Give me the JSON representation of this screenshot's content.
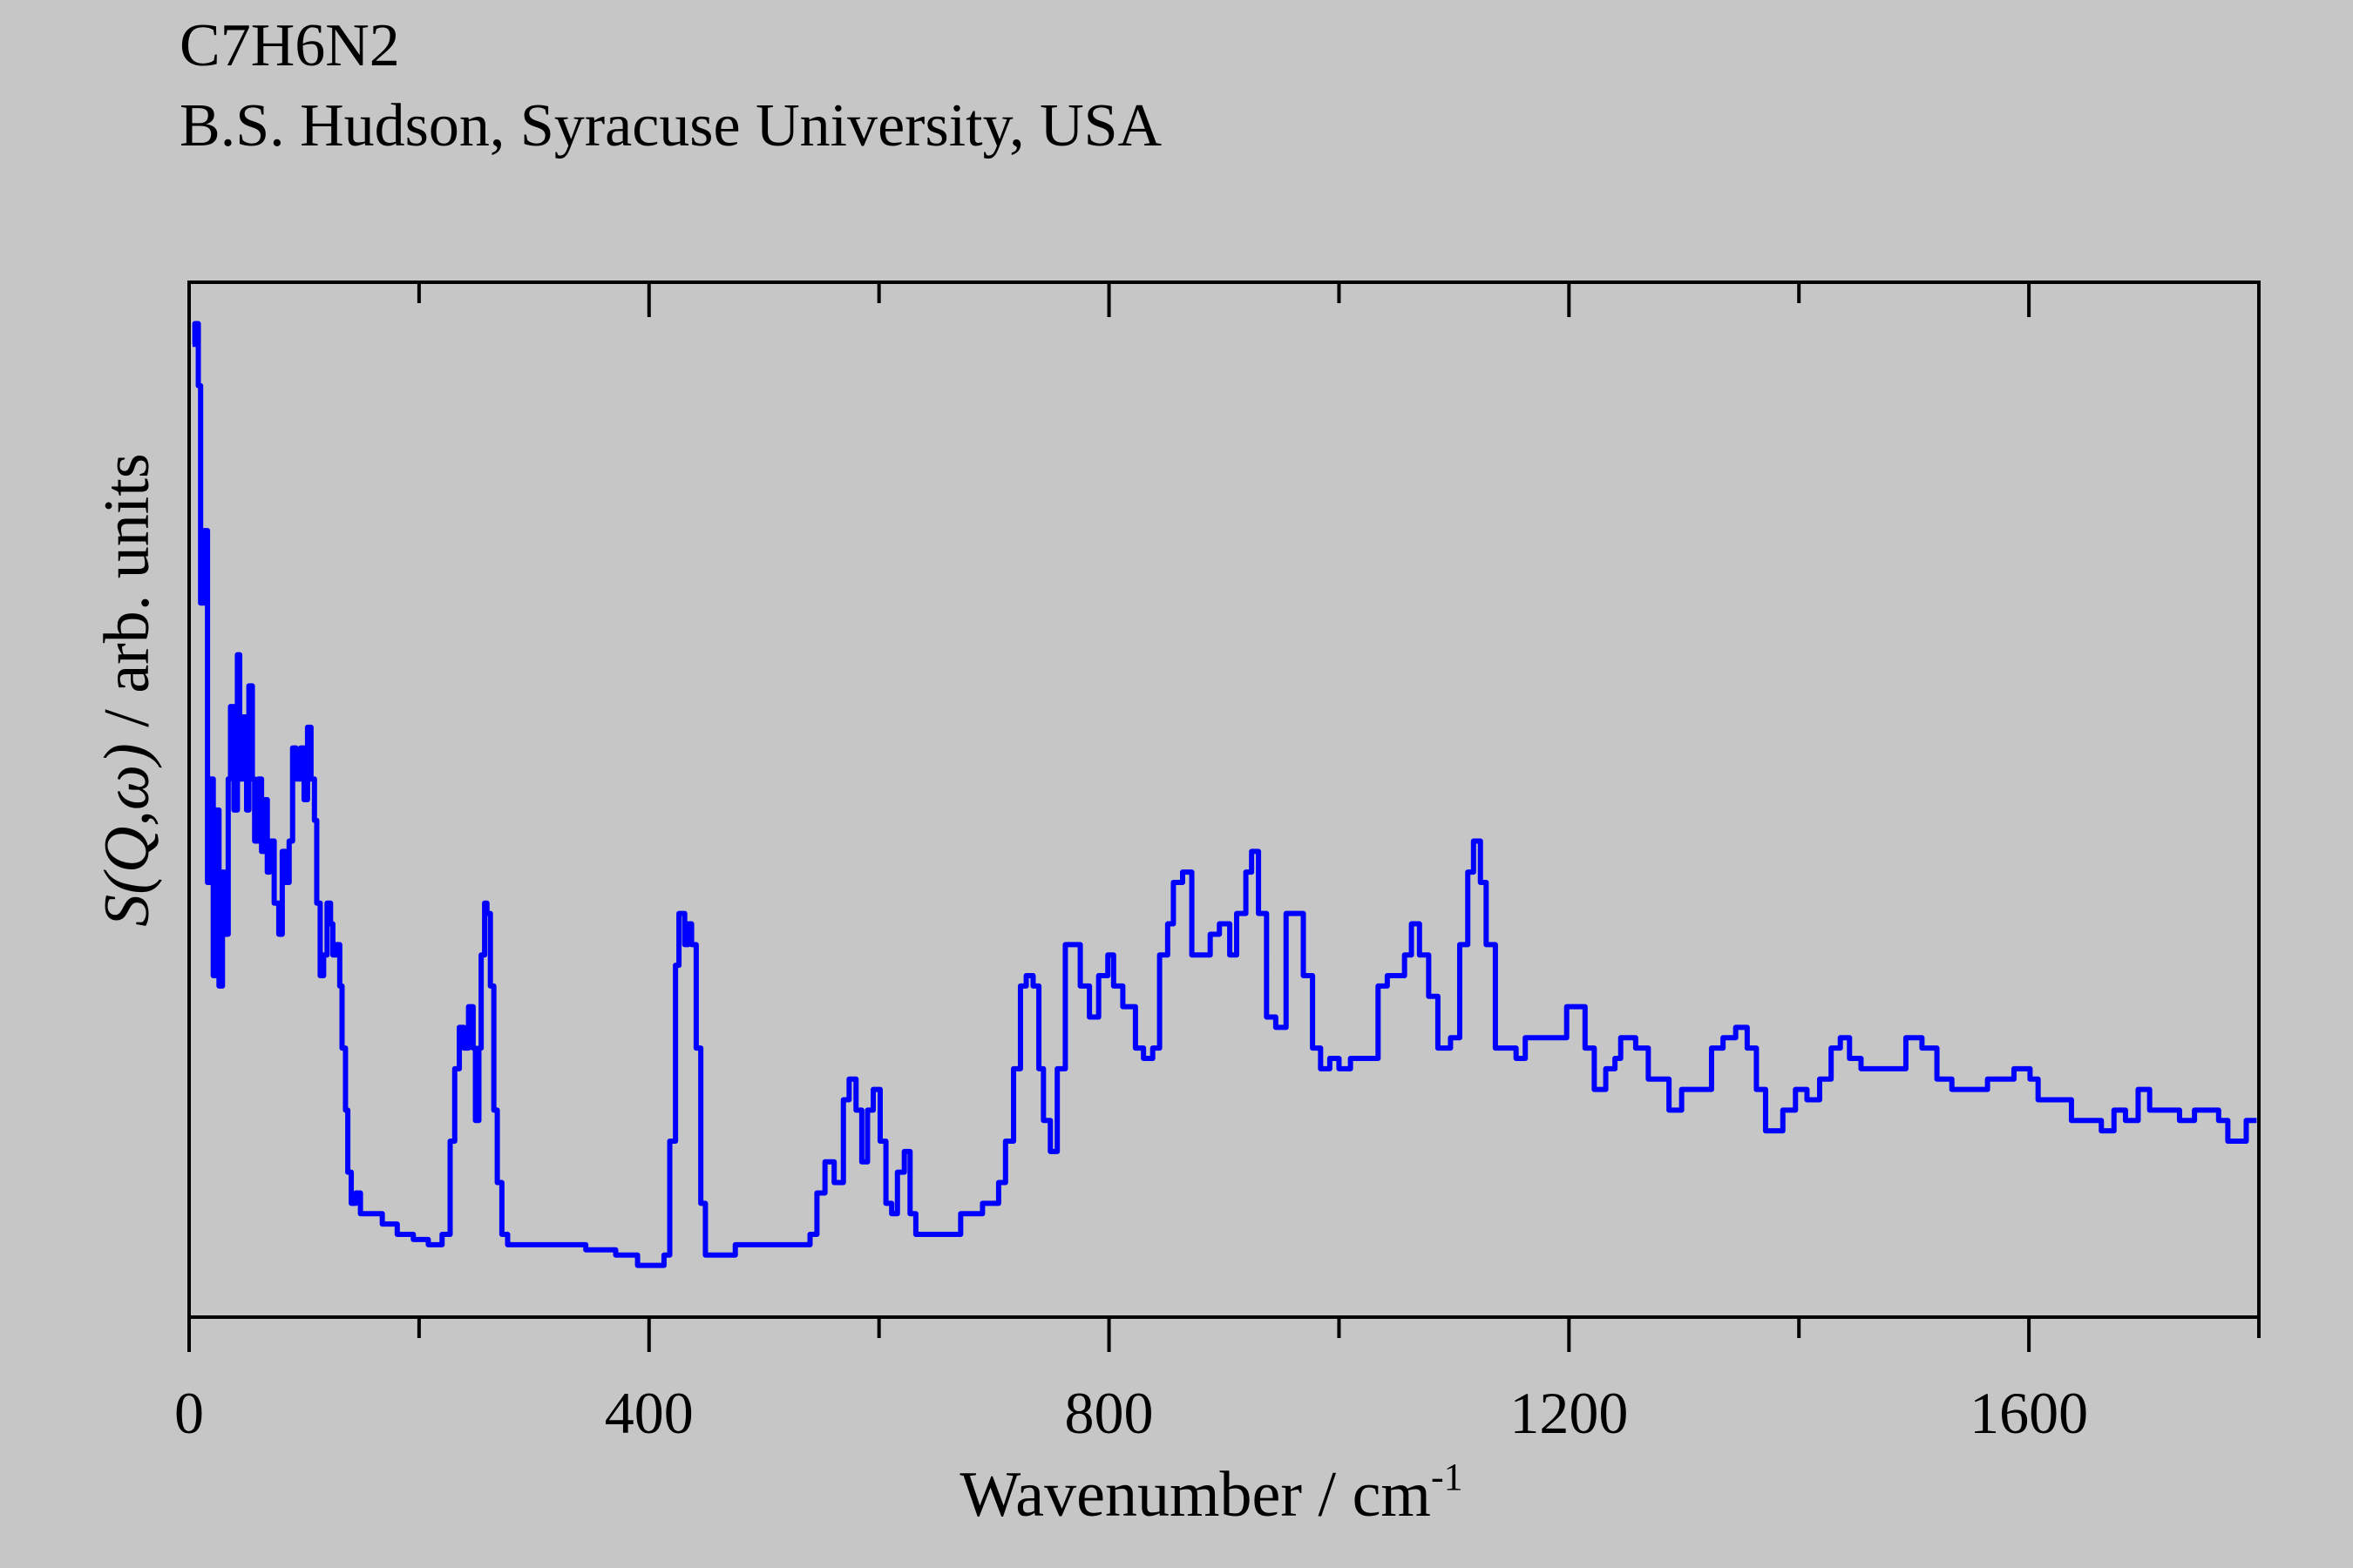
{
  "header": {
    "title": "C7H6N2",
    "subtitle": "B.S. Hudson, Syracuse University, USA"
  },
  "colors": {
    "background": "#c6c6c6",
    "series": "#0000ff",
    "axis": "#000000"
  },
  "chart_data": {
    "type": "line",
    "title": "C7H6N2",
    "subtitle": "B.S. Hudson, Syracuse University, USA",
    "xlabel": "Wavenumber / cm",
    "xlabel_superscript": "-1",
    "ylabel_italic": "S(Q,ω)",
    "ylabel_rest": " / arb. units",
    "xlim": [
      0,
      1800
    ],
    "ylim": [
      0,
      100
    ],
    "x_major_ticks": [
      0,
      400,
      800,
      1200,
      1600
    ],
    "x_tick_labels": [
      "0",
      "400",
      "800",
      "1200",
      "1600"
    ],
    "x_minor_ticks": [
      200,
      600,
      1000,
      1400,
      1800
    ],
    "grid": false,
    "step": true,
    "series": [
      {
        "name": "S(Q,ω)",
        "x": [
          3,
          5,
          8,
          10,
          13,
          16,
          18,
          21,
          23,
          26,
          29,
          31,
          34,
          36,
          39,
          42,
          44,
          47,
          50,
          52,
          55,
          57,
          60,
          63,
          65,
          68,
          70,
          74,
          78,
          81,
          84,
          87,
          90,
          93,
          97,
          100,
          103,
          106,
          109,
          111,
          114,
          117,
          120,
          123,
          125,
          128,
          131,
          133,
          136,
          138,
          141,
          145,
          149,
          155,
          168,
          181,
          195,
          208,
          220,
          227,
          231,
          235,
          239,
          243,
          247,
          249,
          252,
          254,
          257,
          259,
          262,
          265,
          268,
          272,
          277,
          292,
          318,
          345,
          371,
          390,
          403,
          413,
          418,
          423,
          426,
          431,
          434,
          437,
          441,
          445,
          449,
          462,
          475,
          501,
          527,
          540,
          546,
          553,
          561,
          569,
          574,
          580,
          585,
          590,
          595,
          601,
          606,
          611,
          616,
          622,
          627,
          632,
          645,
          671,
          690,
          704,
          710,
          717,
          723,
          728,
          734,
          739,
          743,
          749,
          755,
          762,
          770,
          775,
          783,
          791,
          799,
          804,
          812,
          823,
          830,
          838,
          844,
          851,
          856,
          864,
          872,
          880,
          888,
          896,
          905,
          911,
          919,
          924,
          930,
          937,
          945,
          954,
          961,
          969,
          977,
          984,
          992,
          1000,
          1010,
          1023,
          1034,
          1042,
          1050,
          1057,
          1063,
          1070,
          1078,
          1086,
          1097,
          1105,
          1112,
          1117,
          1123,
          1128,
          1136,
          1154,
          1162,
          1180,
          1193,
          1198,
          1206,
          1214,
          1222,
          1232,
          1240,
          1245,
          1258,
          1269,
          1279,
          1287,
          1298,
          1313,
          1324,
          1334,
          1345,
          1355,
          1363,
          1371,
          1379,
          1386,
          1397,
          1407,
          1418,
          1428,
          1436,
          1444,
          1454,
          1480,
          1493,
          1507,
          1520,
          1533,
          1551,
          1564,
          1574,
          1587,
          1601,
          1608,
          1619,
          1637,
          1663,
          1674,
          1684,
          1695,
          1705,
          1715,
          1731,
          1744,
          1765,
          1773,
          1781,
          1789,
          1798
        ],
        "y": [
          94,
          96,
          90,
          69,
          76,
          42,
          52,
          33,
          49,
          32,
          43,
          37,
          52,
          59,
          49,
          64,
          52,
          58,
          49,
          61,
          52,
          46,
          52,
          45,
          50,
          43,
          46,
          40,
          37,
          45,
          42,
          46,
          55,
          52,
          55,
          50,
          57,
          52,
          48,
          40,
          33,
          35,
          40,
          38,
          35,
          36,
          32,
          26,
          20,
          14,
          11,
          12,
          10,
          10,
          9,
          8,
          7.5,
          7,
          8,
          17,
          24,
          28,
          26,
          30,
          26,
          19,
          26,
          35,
          40,
          39,
          32,
          20,
          13,
          8,
          7,
          7,
          7,
          6.5,
          6,
          5,
          5,
          6,
          17,
          34,
          39,
          36,
          38,
          36,
          26,
          11,
          6,
          6,
          7,
          7,
          7,
          8,
          12,
          15,
          13,
          21,
          23,
          20,
          15,
          20,
          22,
          17,
          11,
          10,
          14,
          16,
          10,
          8,
          8,
          10,
          11,
          13,
          17,
          24,
          32,
          33,
          32,
          24,
          19,
          16,
          24,
          36,
          36,
          32,
          29,
          33,
          35,
          32,
          30,
          26,
          25,
          26,
          35,
          38,
          42,
          43,
          35,
          35,
          37,
          38,
          35,
          39,
          43,
          45,
          39,
          29,
          28,
          39,
          39,
          33,
          26,
          24,
          25,
          24,
          25,
          25,
          32,
          33,
          33,
          35,
          38,
          35,
          31,
          26,
          27,
          36,
          43,
          46,
          42,
          36,
          26,
          25,
          27,
          27,
          27,
          30,
          30,
          26,
          22,
          24,
          25,
          27,
          26,
          23,
          23,
          20,
          22,
          22,
          26,
          27,
          28,
          26,
          22,
          18,
          18,
          20,
          22,
          21,
          23,
          26,
          27,
          25,
          24,
          24,
          27,
          26,
          23,
          22,
          22,
          23,
          23,
          24,
          23,
          21,
          21,
          19,
          18,
          20,
          19,
          22,
          20,
          20,
          19,
          20,
          19,
          17,
          17,
          19,
          19
        ]
      }
    ]
  }
}
